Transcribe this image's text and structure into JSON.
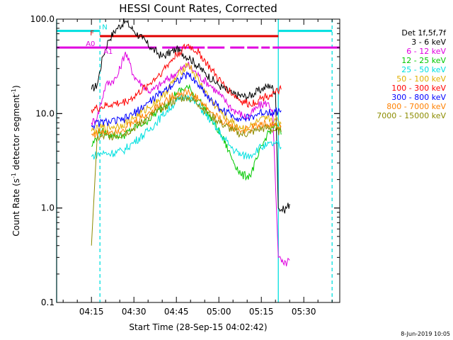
{
  "chart_data": {
    "type": "line",
    "title": "HESSI Count Rates, Corrected",
    "xlabel": "Start Time (28-Sep-15 04:02:42)",
    "ylabel_main": "Count Rate (s",
    "ylabel_sup1": "-1",
    "ylabel_mid": " detector segment",
    "ylabel_sup2": "-1",
    "ylabel_end": ")",
    "y_scale": "log",
    "ylim": [
      0.1,
      100.0
    ],
    "xlim": [
      "04:02:42",
      "05:42:42"
    ],
    "x_tick_labels": [
      "04:15",
      "04:30",
      "04:45",
      "05:00",
      "05:15",
      "05:30"
    ],
    "y_tick_labels": [
      "0.1",
      "1.0",
      "10.0",
      "100.0"
    ],
    "legend_header": "Det 1f,5f,7f",
    "legend_position": "right",
    "series": [
      {
        "name": "3 - 6 keV",
        "color": "#000000",
        "x": [
          "04:15",
          "04:17",
          "04:19",
          "04:21",
          "04:24",
          "04:27",
          "04:30",
          "04:33",
          "04:36",
          "04:40",
          "04:45",
          "04:50",
          "04:55",
          "05:00",
          "05:05",
          "05:10",
          "05:15",
          "05:18",
          "05:20",
          "05:21",
          "05:23",
          "05:25"
        ],
        "y": [
          18,
          20,
          40,
          60,
          80,
          95,
          75,
          62,
          50,
          40,
          48,
          38,
          27,
          20,
          16,
          15,
          18,
          20,
          17,
          1.0,
          0.95,
          1.1
        ]
      },
      {
        "name": "6 - 12 keV",
        "color": "#e000e0",
        "x": [
          "04:15",
          "04:17",
          "04:20",
          "04:24",
          "04:27",
          "04:30",
          "04:33",
          "04:36",
          "04:40",
          "04:45",
          "04:49",
          "04:53",
          "04:57",
          "05:01",
          "05:05",
          "05:10",
          "05:14",
          "05:17",
          "05:19",
          "05:21",
          "05:23",
          "05:25"
        ],
        "y": [
          8,
          9,
          20,
          24,
          45,
          25,
          20,
          17,
          21,
          27,
          33,
          25,
          20,
          15,
          11,
          9,
          12,
          13,
          11,
          0.3,
          0.25,
          0.28
        ]
      },
      {
        "name": "12 - 25 keV",
        "color": "#00c800",
        "x": [
          "04:15",
          "04:18",
          "04:22",
          "04:26",
          "04:30",
          "04:35",
          "04:40",
          "04:45",
          "04:49",
          "04:53",
          "04:57",
          "05:01",
          "05:05",
          "05:08",
          "05:11",
          "05:14",
          "05:17",
          "05:20",
          "05:22"
        ],
        "y": [
          4.5,
          6.5,
          6.0,
          5.8,
          7.0,
          8.5,
          11.5,
          16.5,
          19,
          14,
          9,
          5.8,
          3.2,
          2.2,
          2.2,
          3.6,
          6.0,
          7.8,
          6.0
        ]
      },
      {
        "name": "25 - 50 keV",
        "color": "#00e0e0",
        "x": [
          "04:15",
          "04:18",
          "04:22",
          "04:26",
          "04:30",
          "04:35",
          "04:40",
          "04:45",
          "04:49",
          "04:53",
          "04:57",
          "05:01",
          "05:05",
          "05:08",
          "05:11",
          "05:14",
          "05:17",
          "05:20",
          "05:22"
        ],
        "y": [
          3.5,
          3.8,
          3.8,
          4.0,
          5.0,
          6.5,
          9.5,
          13.5,
          15.5,
          12,
          8.5,
          5.8,
          4.2,
          3.6,
          3.6,
          4.3,
          4.6,
          4.8,
          4.4
        ]
      },
      {
        "name": "50 - 100 keV",
        "color": "#e0b000",
        "x": [
          "04:15",
          "04:18",
          "04:22",
          "04:26",
          "04:30",
          "04:35",
          "04:40",
          "04:45",
          "04:49",
          "04:53",
          "04:57",
          "05:01",
          "05:05",
          "05:08",
          "05:11",
          "05:14",
          "05:17",
          "05:20",
          "05:22"
        ],
        "y": [
          6.5,
          7.0,
          7.2,
          7.6,
          9.0,
          11.5,
          15,
          24,
          34,
          22,
          14,
          10,
          8.0,
          7.0,
          7.2,
          8.2,
          8.8,
          8.6,
          7.8
        ]
      },
      {
        "name": "100 - 300 keV",
        "color": "#ff0000",
        "x": [
          "04:15",
          "04:18",
          "04:22",
          "04:26",
          "04:30",
          "04:35",
          "04:40",
          "04:45",
          "04:49",
          "04:53",
          "04:57",
          "05:01",
          "05:05",
          "05:08",
          "05:11",
          "05:14",
          "05:17",
          "05:20",
          "05:22"
        ],
        "y": [
          11,
          11.5,
          12.5,
          13,
          15,
          20,
          28,
          42,
          53,
          44,
          30,
          21,
          16,
          13.5,
          12.5,
          14,
          15.5,
          16.5,
          18
        ]
      },
      {
        "name": "300 - 800 keV",
        "color": "#0000ff",
        "x": [
          "04:15",
          "04:18",
          "04:22",
          "04:26",
          "04:30",
          "04:35",
          "04:40",
          "04:45",
          "04:49",
          "04:53",
          "04:57",
          "05:01",
          "05:05",
          "05:08",
          "05:11",
          "05:14",
          "05:17",
          "05:20",
          "05:22"
        ],
        "y": [
          7.5,
          8.0,
          8.2,
          8.5,
          10,
          13,
          17,
          22,
          26,
          20,
          14,
          11,
          9.5,
          8.8,
          9.0,
          10,
          10.5,
          10.5,
          10.8
        ]
      },
      {
        "name": "800 - 7000 keV",
        "color": "#ff8000",
        "x": [
          "04:15",
          "04:18",
          "04:22",
          "04:26",
          "04:30",
          "04:35",
          "04:40",
          "04:45",
          "04:49",
          "04:53",
          "04:57",
          "05:01",
          "05:05",
          "05:08",
          "05:11",
          "05:14",
          "05:17",
          "05:20",
          "05:22"
        ],
        "y": [
          6.0,
          6.3,
          6.5,
          6.8,
          8.0,
          10,
          13,
          16,
          17,
          14,
          10.5,
          8.5,
          7.2,
          6.6,
          6.8,
          7.6,
          7.8,
          7.4,
          7.2
        ]
      },
      {
        "name": "7000 - 15000 keV",
        "color": "#8c8c00",
        "x": [
          "04:15",
          "04:17",
          "04:22",
          "04:26",
          "04:30",
          "04:35",
          "04:40",
          "04:45",
          "04:49",
          "04:53",
          "04:57",
          "05:01",
          "05:05",
          "05:08",
          "05:11",
          "05:14",
          "05:17",
          "05:20",
          "05:22"
        ],
        "y": [
          0.4,
          5.5,
          5.8,
          6.0,
          7.0,
          9.0,
          11.5,
          14,
          15,
          12.5,
          9.5,
          7.8,
          6.6,
          6.0,
          6.2,
          6.8,
          7.0,
          6.6,
          6.4
        ]
      }
    ],
    "bars": [
      {
        "label": "N",
        "color": "#00e0e0",
        "y": 75,
        "segments": [
          [
            "04:02:42",
            "04:18"
          ],
          [
            "05:21",
            "05:40"
          ]
        ]
      },
      {
        "label": "F",
        "color": "#e00000",
        "y": 66,
        "segments": [
          [
            "04:18",
            "05:21"
          ]
        ]
      },
      {
        "label": "A0",
        "color": "#e000e0",
        "y": 50,
        "segments": [
          [
            "04:02:42",
            "04:18"
          ],
          [
            "05:21",
            "05:42:42"
          ]
        ]
      },
      {
        "label": "A1",
        "color": "#e000e0",
        "y": 50,
        "segments": [
          [
            "04:18",
            "04:38"
          ],
          [
            "04:40",
            "04:55"
          ],
          [
            "04:56",
            "05:02"
          ],
          [
            "05:04",
            "05:09"
          ],
          [
            "05:10",
            "05:14"
          ],
          [
            "05:15",
            "05:18"
          ],
          [
            "05:19",
            "05:21"
          ]
        ]
      }
    ],
    "vlines": [
      {
        "x": "04:02:42",
        "color": "#00e0e0",
        "style": "solid"
      },
      {
        "x": "04:18",
        "color": "#00e0e0",
        "style": "dashed"
      },
      {
        "x": "05:21",
        "color": "#00e0e0",
        "style": "solid"
      },
      {
        "x": "05:40",
        "color": "#00e0e0",
        "style": "dashed"
      }
    ],
    "footer": "8-Jun-2019 10:05"
  }
}
